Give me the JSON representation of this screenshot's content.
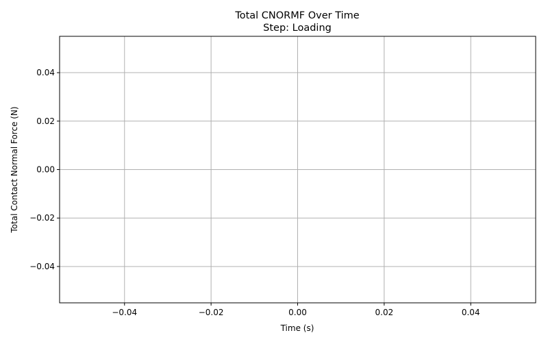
{
  "chart_data": {
    "type": "line",
    "title": "Total CNORMF Over Time",
    "subtitle": "Step: Loading",
    "xlabel": "Time (s)",
    "ylabel": "Total Contact Normal Force (N)",
    "xlim": [
      -0.055,
      0.055
    ],
    "ylim": [
      -0.055,
      0.055
    ],
    "xticks": [
      -0.04,
      -0.02,
      0.0,
      0.02,
      0.04
    ],
    "yticks": [
      -0.04,
      -0.02,
      0.0,
      0.02,
      0.04
    ],
    "xtick_labels": [
      "−0.04",
      "−0.02",
      "0.00",
      "0.02",
      "0.04"
    ],
    "ytick_labels": [
      "−0.04",
      "−0.02",
      "0.00",
      "0.02",
      "0.04"
    ],
    "grid": true,
    "series": [
      {
        "x": [],
        "y": []
      }
    ],
    "colors": {
      "grid": "#b0b0b0",
      "axes": "#000000",
      "line": "#1f77b4"
    }
  }
}
